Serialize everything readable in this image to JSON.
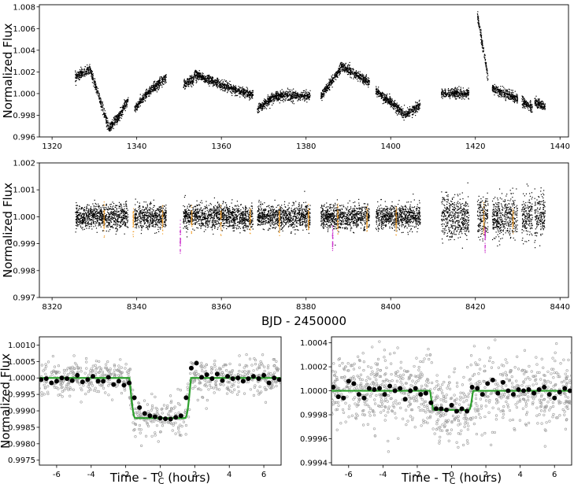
{
  "chart_data": [
    {
      "type": "scatter",
      "ylabel": "Normalized Flux",
      "xlim": [
        1317,
        1442
      ],
      "ylim": [
        0.996,
        1.0082
      ],
      "xticks": [
        1320,
        1340,
        1360,
        1380,
        1400,
        1420,
        1440
      ],
      "yticks": [
        0.996,
        0.998,
        1.0,
        1.002,
        1.004,
        1.006,
        1.008
      ],
      "ytick_labels": [
        "0.996",
        "0.998",
        "1.000",
        "1.002",
        "1.004",
        "1.006",
        "1.008"
      ],
      "series": [
        {
          "color": "#000000",
          "segments": [
            {
              "x": [
                1325.5,
                1329,
                1333.5,
                1336,
                1338
              ],
              "y": [
                1.0015,
                1.0022,
                0.9968,
                0.998,
                0.9995
              ]
            },
            {
              "x": [
                1339.5,
                1343,
                1347
              ],
              "y": [
                0.9986,
                1.0002,
                1.0015
              ]
            },
            {
              "x": [
                1351,
                1353.5
              ],
              "y": [
                1.0008,
                1.0013
              ]
            },
            {
              "x": [
                1353.6,
                1360,
                1367.5
              ],
              "y": [
                1.0018,
                1.0008,
                0.9998
              ]
            },
            {
              "x": [
                1368.5,
                1373,
                1381
              ],
              "y": [
                0.9986,
                0.9998,
                0.9998
              ]
            },
            {
              "x": [
                1383.5,
                1388.5,
                1395
              ],
              "y": [
                0.9997,
                1.0025,
                1.001
              ]
            },
            {
              "x": [
                1396.5,
                1403.5,
                1407
              ],
              "y": [
                1.0003,
                0.998,
                0.999
              ]
            },
            {
              "x": [
                1412,
                1418.5
              ],
              "y": [
                1.0,
                1.0
              ]
            },
            {
              "x": [
                1420.5,
                1423
              ],
              "y": [
                1.0072,
                1.0015
              ]
            },
            {
              "x": [
                1424,
                1430
              ],
              "y": [
                1.0005,
                0.9995
              ]
            },
            {
              "x": [
                1431,
                1433.5
              ],
              "y": [
                0.9993,
                0.9987
              ]
            },
            {
              "x": [
                1434,
                1436.5
              ],
              "y": [
                0.9992,
                0.9988
              ]
            }
          ]
        }
      ]
    },
    {
      "type": "scatter",
      "xlabel": "BJD - 2450000",
      "ylabel": "Normalized Flux",
      "xlim": [
        8317,
        8442
      ],
      "ylim": [
        0.997,
        1.002
      ],
      "xticks": [
        8320,
        8340,
        8360,
        8380,
        8400,
        8420,
        8440
      ],
      "yticks": [
        0.997,
        0.998,
        0.999,
        1.0,
        1.001,
        1.002
      ],
      "ytick_labels": [
        "0.997",
        "0.998",
        "0.999",
        "1.000",
        "1.001",
        "1.002"
      ],
      "series": [
        {
          "color": "#000000",
          "segments": [
            [
              8325.5,
              8338
            ],
            [
              8339.5,
              8347
            ],
            [
              8351,
              8353.5
            ],
            [
              8353.6,
              8367.5
            ],
            [
              8368.5,
              8381
            ],
            [
              8383.5,
              8395
            ],
            [
              8396.5,
              8407
            ],
            [
              8412,
              8418.5
            ],
            [
              8420.5,
              8423
            ],
            [
              8424,
              8430
            ],
            [
              8431,
              8433.5
            ],
            [
              8434,
              8436.5
            ]
          ],
          "level": 1.0
        },
        {
          "color": "#f0a030",
          "x": [
            8332.3,
            8339.2,
            8346.1,
            8353.0,
            8359.9,
            8366.8,
            8373.7,
            8380.6,
            8387.5,
            8394.4,
            8401.3,
            8422.0,
            8428.9
          ],
          "depth": 0.00012
        },
        {
          "color": "#cc33cc",
          "x": [
            8350.3,
            8386.3,
            8422.3
          ],
          "depth": 0.00125
        }
      ]
    },
    {
      "type": "scatter",
      "xlabel": "Time - TC (hours)",
      "ylabel": "Normalized Flux",
      "xlim": [
        -7,
        7
      ],
      "ylim": [
        0.99735,
        1.00125
      ],
      "xticks": [
        -6,
        -4,
        -2,
        0,
        2,
        4,
        6
      ],
      "yticks": [
        0.9975,
        0.998,
        0.9985,
        0.999,
        0.9995,
        1.0,
        1.0005,
        1.001
      ],
      "ytick_labels": [
        "0.9975",
        "0.9980",
        "0.9985",
        "0.9990",
        "0.9995",
        "1.0000",
        "1.0005",
        "1.0010"
      ],
      "model": {
        "color": "#2ca02c",
        "depth": 0.00122,
        "t1": 1.78,
        "t2": 1.45
      },
      "binned": {
        "x": [
          -6.9,
          -6.6,
          -6.3,
          -6.0,
          -5.7,
          -5.4,
          -5.1,
          -4.8,
          -4.5,
          -4.2,
          -3.9,
          -3.6,
          -3.3,
          -3.0,
          -2.7,
          -2.4,
          -2.1,
          -1.8,
          -1.5,
          -1.2,
          -0.9,
          -0.6,
          -0.3,
          0.0,
          0.3,
          0.6,
          0.9,
          1.2,
          1.5,
          1.8,
          2.1,
          2.4,
          2.7,
          3.0,
          3.3,
          3.6,
          3.9,
          4.2,
          4.5,
          4.8,
          5.1,
          5.4,
          5.7,
          6.0,
          6.3,
          6.6,
          6.9
        ],
        "y": [
          0.99995,
          0.99998,
          0.99985,
          0.9999,
          1.0,
          0.99998,
          0.99992,
          1.00008,
          0.99988,
          0.99995,
          1.00005,
          0.9999,
          0.9999,
          1.00002,
          0.9998,
          0.9999,
          0.99978,
          0.99985,
          0.9994,
          0.9991,
          0.99892,
          0.99885,
          0.99882,
          0.99878,
          0.99876,
          0.99875,
          0.9988,
          0.99885,
          0.9994,
          1.0003,
          1.00045,
          1.00002,
          1.0001,
          0.99998,
          1.00012,
          0.99992,
          1.00005,
          0.99998,
          1.0,
          0.9999,
          0.99998,
          1.00005,
          0.99998,
          1.00008,
          0.99985,
          1.0,
          0.99995
        ]
      },
      "scatter_sigma": 0.00028,
      "unbinned_count": 700
    },
    {
      "type": "scatter",
      "xlabel": "Time - TC (hours)",
      "xlim": [
        -7,
        7
      ],
      "ylim": [
        0.99938,
        1.00045
      ],
      "xticks": [
        -6,
        -4,
        -2,
        0,
        2,
        4,
        6
      ],
      "yticks": [
        0.9994,
        0.9996,
        0.9998,
        1.0,
        1.0002,
        1.0004
      ],
      "ytick_labels": [
        "0.9994",
        "0.9996",
        "0.9998",
        "1.0000",
        "1.0002",
        "1.0004"
      ],
      "model": {
        "color": "#2ca02c",
        "depth": 0.00016,
        "t1": 1.25,
        "t2": 1.02
      },
      "binned": {
        "x": [
          -6.9,
          -6.6,
          -6.3,
          -6.0,
          -5.7,
          -5.4,
          -5.1,
          -4.8,
          -4.5,
          -4.2,
          -3.9,
          -3.6,
          -3.3,
          -3.0,
          -2.7,
          -2.4,
          -2.1,
          -1.8,
          -1.5,
          -1.2,
          -0.9,
          -0.6,
          -0.3,
          0.0,
          0.3,
          0.6,
          0.9,
          1.2,
          1.5,
          1.8,
          2.1,
          2.4,
          2.7,
          3.0,
          3.3,
          3.6,
          3.9,
          4.2,
          4.5,
          4.8,
          5.1,
          5.4,
          5.7,
          6.0,
          6.3,
          6.6,
          6.9
        ],
        "y": [
          1.00003,
          0.99995,
          0.99994,
          1.00008,
          1.00006,
          0.99997,
          0.99994,
          1.00002,
          1.00001,
          1.00002,
          0.99997,
          1.00004,
          1.0,
          1.00002,
          0.99993,
          1.0,
          1.00002,
          0.99997,
          0.99998,
          0.9999,
          0.99985,
          0.99985,
          0.99984,
          0.99988,
          0.99983,
          0.99985,
          0.99983,
          1.00003,
          1.00002,
          0.99997,
          1.00006,
          1.00009,
          0.99998,
          1.00007,
          1.0,
          0.99997,
          1.00001,
          1.0,
          1.00001,
          0.99998,
          1.00001,
          1.00003,
          0.99997,
          0.99994,
          0.99999,
          1.00002,
          1.0
        ]
      },
      "scatter_sigma": 0.00015,
      "unbinned_count": 1000
    }
  ]
}
